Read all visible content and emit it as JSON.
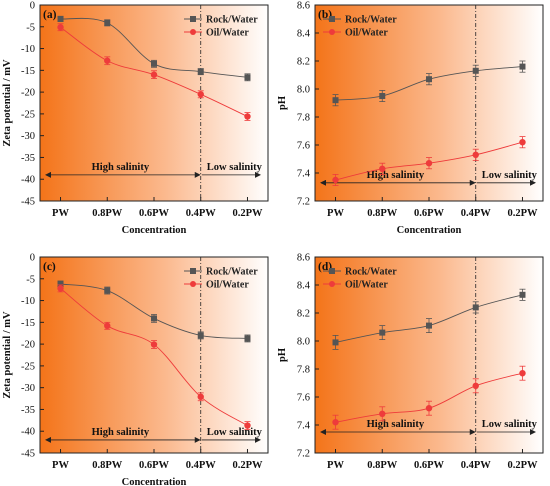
{
  "figure": {
    "colors": {
      "rock": "#555555",
      "oil": "#ee3b3b",
      "gradient_start": "#f47419",
      "gradient_end": "#ffffff"
    }
  },
  "chart_data": [
    {
      "panel_label": "(a)",
      "type": "line",
      "categories": [
        "PW",
        "0.8PW",
        "0.6PW",
        "0.4PW",
        "0.2PW"
      ],
      "xlabel": "Concentration",
      "ylabel": "Zeta potential / mV",
      "ylim": [
        -45,
        0
      ],
      "yticks": [
        0,
        -5,
        -10,
        -15,
        -20,
        -25,
        -30,
        -35,
        -40,
        -45
      ],
      "tick_labels": [
        "0",
        "-5",
        "-10",
        "-15",
        "-20",
        "-25",
        "-30",
        "-35",
        "-40",
        "-45"
      ],
      "legend_position": "top-right",
      "divider_at": "0.4PW",
      "region_labels": {
        "left": "High salinity",
        "right": "Low salinity"
      },
      "region_y": -39,
      "series": [
        {
          "name": "Rock/Water",
          "marker": "square",
          "values": [
            -3.2,
            -4.1,
            -13.5,
            -15.3,
            -16.6
          ],
          "errors": [
            0.6,
            0.7,
            0.8,
            0.7,
            0.8
          ]
        },
        {
          "name": "Oil/Water",
          "marker": "circle",
          "values": [
            -5.1,
            -12.8,
            -16.0,
            -20.5,
            -25.6
          ],
          "errors": [
            0.8,
            0.9,
            0.9,
            0.8,
            0.9
          ]
        }
      ]
    },
    {
      "panel_label": "(b)",
      "type": "line",
      "categories": [
        "PW",
        "0.8PW",
        "0.6PW",
        "0.4PW",
        "0.2PW"
      ],
      "xlabel": "Concentration",
      "ylabel": "pH",
      "ylim": [
        7.2,
        8.6
      ],
      "yticks": [
        7.2,
        7.4,
        7.6,
        7.8,
        8.0,
        8.2,
        8.4,
        8.6
      ],
      "tick_labels": [
        "7.2",
        "7.4",
        "7.6",
        "7.8",
        "8.0",
        "8.2",
        "8.4",
        "8.6"
      ],
      "legend_position": "top-left",
      "divider_at": "0.4PW",
      "region_labels": {
        "left": "High salinity",
        "right": "Low salinity"
      },
      "region_y": 7.33,
      "series": [
        {
          "name": "Rock/Water",
          "marker": "square",
          "values": [
            7.92,
            7.95,
            8.07,
            8.13,
            8.16
          ],
          "errors": [
            0.04,
            0.04,
            0.04,
            0.04,
            0.04
          ]
        },
        {
          "name": "Oil/Water",
          "marker": "circle",
          "values": [
            7.35,
            7.43,
            7.47,
            7.53,
            7.62
          ],
          "errors": [
            0.04,
            0.04,
            0.04,
            0.04,
            0.04
          ]
        }
      ]
    },
    {
      "panel_label": "(c)",
      "type": "line",
      "categories": [
        "PW",
        "0.8PW",
        "0.6PW",
        "0.4PW",
        "0.2PW"
      ],
      "xlabel": "Concentration",
      "ylabel": "Zeta potential / mV",
      "ylim": [
        -45,
        0
      ],
      "yticks": [
        0,
        -5,
        -10,
        -15,
        -20,
        -25,
        -30,
        -35,
        -40,
        -45
      ],
      "tick_labels": [
        "0",
        "-5",
        "-10",
        "-15",
        "-20",
        "-25",
        "-30",
        "-35",
        "-40",
        "-45"
      ],
      "legend_position": "top-right",
      "divider_at": "0.4PW",
      "region_labels": {
        "left": "High salinity",
        "right": "Low salinity"
      },
      "region_y": -42,
      "series": [
        {
          "name": "Rock/Water",
          "marker": "square",
          "values": [
            -6.2,
            -7.7,
            -14.1,
            -18.0,
            -18.7
          ],
          "errors": [
            0.7,
            0.8,
            0.9,
            0.8,
            0.8
          ]
        },
        {
          "name": "Oil/Water",
          "marker": "circle",
          "values": [
            -7.2,
            -15.8,
            -20.1,
            -32.1,
            -38.7
          ],
          "errors": [
            0.8,
            0.8,
            0.9,
            0.9,
            0.9
          ]
        }
      ]
    },
    {
      "panel_label": "(d)",
      "type": "line",
      "categories": [
        "PW",
        "0.8PW",
        "0.6PW",
        "0.4PW",
        "0.2PW"
      ],
      "xlabel": "",
      "ylabel": "pH",
      "ylim": [
        7.2,
        8.6
      ],
      "yticks": [
        7.2,
        7.4,
        7.6,
        7.8,
        8.0,
        8.2,
        8.4,
        8.6
      ],
      "tick_labels": [
        "7.2",
        "7.4",
        "7.6",
        "7.8",
        "8.0",
        "8.2",
        "8.4",
        "8.6"
      ],
      "legend_position": "top-left",
      "divider_at": "0.4PW",
      "region_labels": {
        "left": "High salinity",
        "right": "Low salinity"
      },
      "region_y": 7.35,
      "series": [
        {
          "name": "Rock/Water",
          "marker": "square",
          "values": [
            7.99,
            8.06,
            8.11,
            8.24,
            8.33
          ],
          "errors": [
            0.05,
            0.05,
            0.05,
            0.04,
            0.04
          ]
        },
        {
          "name": "Oil/Water",
          "marker": "circle",
          "values": [
            7.42,
            7.48,
            7.52,
            7.68,
            7.77
          ],
          "errors": [
            0.05,
            0.05,
            0.05,
            0.05,
            0.05
          ]
        }
      ]
    }
  ]
}
